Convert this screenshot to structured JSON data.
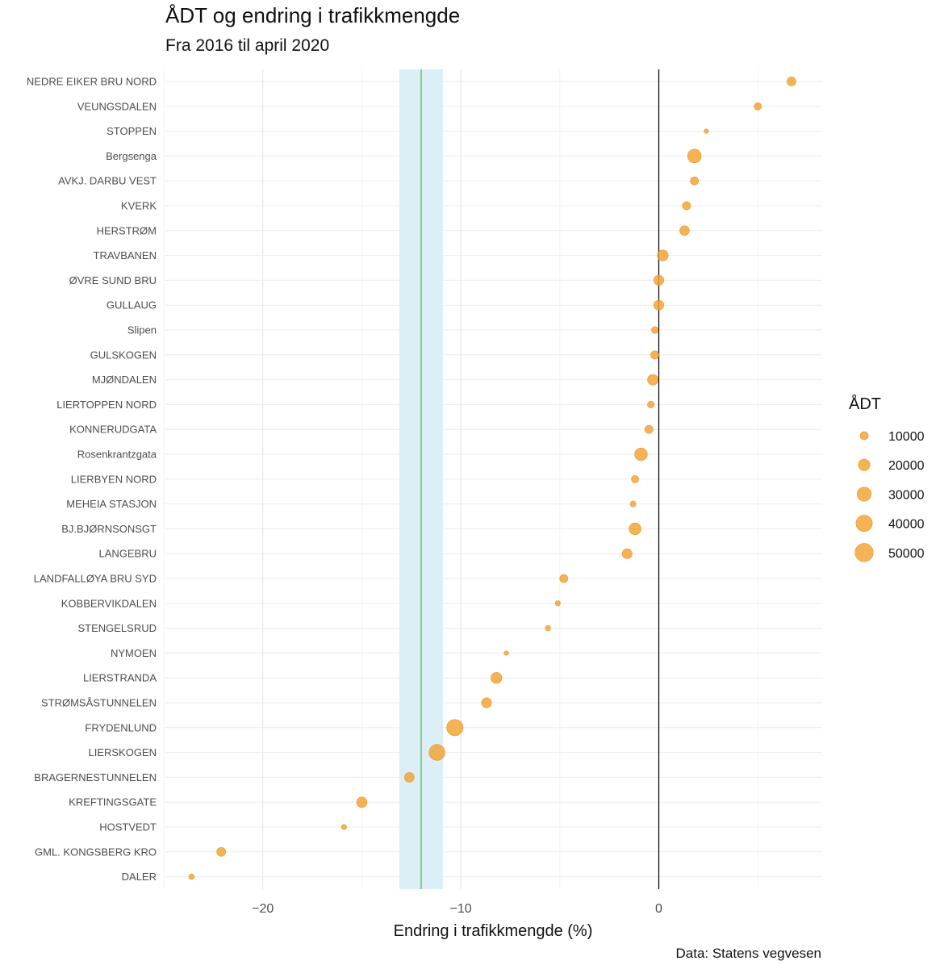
{
  "title": "ÅDT og endring i trafikkmengde",
  "subtitle": "Fra 2016 til april 2020",
  "caption": "Data: Statens vegvesen",
  "chart_data": {
    "type": "scatter",
    "title": "ÅDT og endring i trafikkmengde",
    "subtitle": "Fra 2016 til april 2020",
    "xlabel": "Endring i trafikkmengde (%)",
    "ylabel": "",
    "xlim": [
      -25,
      8.3
    ],
    "x_ticks": [
      -20,
      -10,
      0
    ],
    "grid": true,
    "reference_lines": {
      "zero": 0,
      "mean": -12,
      "band": [
        -13.1,
        -10.9
      ]
    },
    "colors": {
      "points": "#F2A22F",
      "band": "#DCEEF6",
      "mean_line": "#4CBF4C",
      "zero_line": "#000000"
    },
    "size_legend": {
      "title": "ÅDT",
      "position": "right",
      "values": [
        10000,
        20000,
        30000,
        40000,
        50000
      ]
    },
    "points": [
      {
        "label": "NEDRE EIKER BRU NORD",
        "x": 6.7,
        "adt": 12000
      },
      {
        "label": "VEUNGSDALEN",
        "x": 5.0,
        "adt": 8000
      },
      {
        "label": "STOPPEN",
        "x": 2.4,
        "adt": 3000
      },
      {
        "label": "Bergsenga",
        "x": 1.8,
        "adt": 28000
      },
      {
        "label": "AVKJ. DARBU VEST",
        "x": 1.8,
        "adt": 10000
      },
      {
        "label": "KVERK",
        "x": 1.4,
        "adt": 10000
      },
      {
        "label": "HERSTRØM",
        "x": 1.3,
        "adt": 14000
      },
      {
        "label": "TRAVBANEN",
        "x": 0.2,
        "adt": 18000
      },
      {
        "label": "ØVRE SUND BRU",
        "x": 0.0,
        "adt": 15000
      },
      {
        "label": "GULLAUG",
        "x": 0.0,
        "adt": 15000
      },
      {
        "label": "Slipen",
        "x": -0.2,
        "adt": 7000
      },
      {
        "label": "GULSKOGEN",
        "x": -0.2,
        "adt": 10000
      },
      {
        "label": "MJØNDALEN",
        "x": -0.3,
        "adt": 17000
      },
      {
        "label": "LIERTOPPEN NORD",
        "x": -0.4,
        "adt": 7000
      },
      {
        "label": "KONNERUDGATA",
        "x": -0.5,
        "adt": 10000
      },
      {
        "label": "Rosenkrantzgata",
        "x": -0.9,
        "adt": 24000
      },
      {
        "label": "LIERBYEN NORD",
        "x": -1.2,
        "adt": 8000
      },
      {
        "label": "MEHEIA STASJON",
        "x": -1.3,
        "adt": 5000
      },
      {
        "label": "BJ.BJØRNSONSGT",
        "x": -1.2,
        "adt": 21000
      },
      {
        "label": "LANGEBRU",
        "x": -1.6,
        "adt": 15000
      },
      {
        "label": "LANDFALLØYA BRU SYD",
        "x": -4.8,
        "adt": 10000
      },
      {
        "label": "KOBBERVIKDALEN",
        "x": -5.1,
        "adt": 4000
      },
      {
        "label": "STENGELSRUD",
        "x": -5.6,
        "adt": 4500
      },
      {
        "label": "NYMOEN",
        "x": -7.7,
        "adt": 3000
      },
      {
        "label": "LIERSTRANDA",
        "x": -8.2,
        "adt": 18000
      },
      {
        "label": "STRØMSÅSTUNNELEN",
        "x": -8.7,
        "adt": 15000
      },
      {
        "label": "FRYDENLUND",
        "x": -10.3,
        "adt": 40000
      },
      {
        "label": "LIERSKOGEN",
        "x": -11.2,
        "adt": 38000
      },
      {
        "label": "BRAGERNESTUNNELEN",
        "x": -12.6,
        "adt": 14000
      },
      {
        "label": "KREFTINGSGATE",
        "x": -15.0,
        "adt": 16000
      },
      {
        "label": "HOSTVEDT",
        "x": -15.9,
        "adt": 4000
      },
      {
        "label": "GML. KONGSBERG KRO",
        "x": -22.1,
        "adt": 12000
      },
      {
        "label": "DALER",
        "x": -23.6,
        "adt": 4500
      }
    ]
  }
}
